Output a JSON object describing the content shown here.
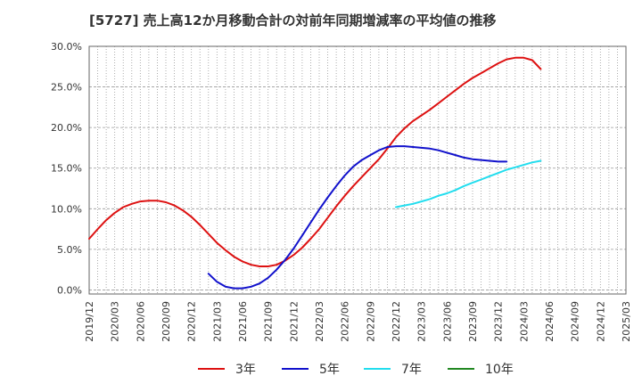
{
  "chart_data": {
    "type": "line",
    "title": "[5727]  売上高12か月移動合計の対前年同期増減率の平均値の推移",
    "xlabel": "",
    "ylabel": "",
    "y_tick_labels": [
      "0.0%",
      "5.0%",
      "10.0%",
      "15.0%",
      "20.0%",
      "25.0%",
      "30.0%"
    ],
    "y_ticks": [
      0,
      5,
      10,
      15,
      20,
      25,
      30
    ],
    "ylim": [
      -0.5,
      30
    ],
    "x_tick_labels": [
      "2019/12",
      "2020/03",
      "2020/06",
      "2020/09",
      "2020/12",
      "2021/03",
      "2021/06",
      "2021/09",
      "2021/12",
      "2022/03",
      "2022/06",
      "2022/09",
      "2022/12",
      "2023/03",
      "2023/06",
      "2023/09",
      "2023/12",
      "2024/03",
      "2024/06",
      "2024/09",
      "2024/12",
      "2025/03"
    ],
    "grid": true,
    "legend_position": "bottom",
    "series": [
      {
        "name": "3年",
        "color": "#dd1111",
        "start": "2019/12",
        "values": [
          6.3,
          7.5,
          8.6,
          9.5,
          10.2,
          10.6,
          10.9,
          11.0,
          11.0,
          10.8,
          10.4,
          9.8,
          9.0,
          8.0,
          6.9,
          5.8,
          4.9,
          4.1,
          3.5,
          3.1,
          2.9,
          2.9,
          3.1,
          3.6,
          4.3,
          5.2,
          6.3,
          7.5,
          8.9,
          10.3,
          11.6,
          12.8,
          13.9,
          15.0,
          16.1,
          17.4,
          18.8,
          19.9,
          20.8,
          21.5,
          22.2,
          23.0,
          23.8,
          24.6,
          25.4,
          26.1,
          26.7,
          27.3,
          27.9,
          28.4,
          28.6,
          28.6,
          28.3,
          27.2
        ]
      },
      {
        "name": "5年",
        "color": "#1111cc",
        "start": "2021/02",
        "values": [
          2.0,
          1.0,
          0.4,
          0.2,
          0.2,
          0.4,
          0.8,
          1.5,
          2.5,
          3.7,
          5.1,
          6.7,
          8.3,
          9.9,
          11.4,
          12.8,
          14.1,
          15.2,
          16.0,
          16.6,
          17.2,
          17.6,
          17.7,
          17.7,
          17.6,
          17.5,
          17.4,
          17.2,
          16.9,
          16.6,
          16.3,
          16.1,
          16.0,
          15.9,
          15.8,
          15.8
        ]
      },
      {
        "name": "7年",
        "color": "#22ddee",
        "start": "2022/12",
        "values": [
          10.2,
          10.4,
          10.6,
          10.9,
          11.2,
          11.6,
          11.9,
          12.3,
          12.8,
          13.2,
          13.6,
          14.0,
          14.4,
          14.8,
          15.1,
          15.4,
          15.7,
          15.9
        ]
      },
      {
        "name": "10年",
        "color": "#228822",
        "start": "",
        "values": []
      }
    ]
  }
}
